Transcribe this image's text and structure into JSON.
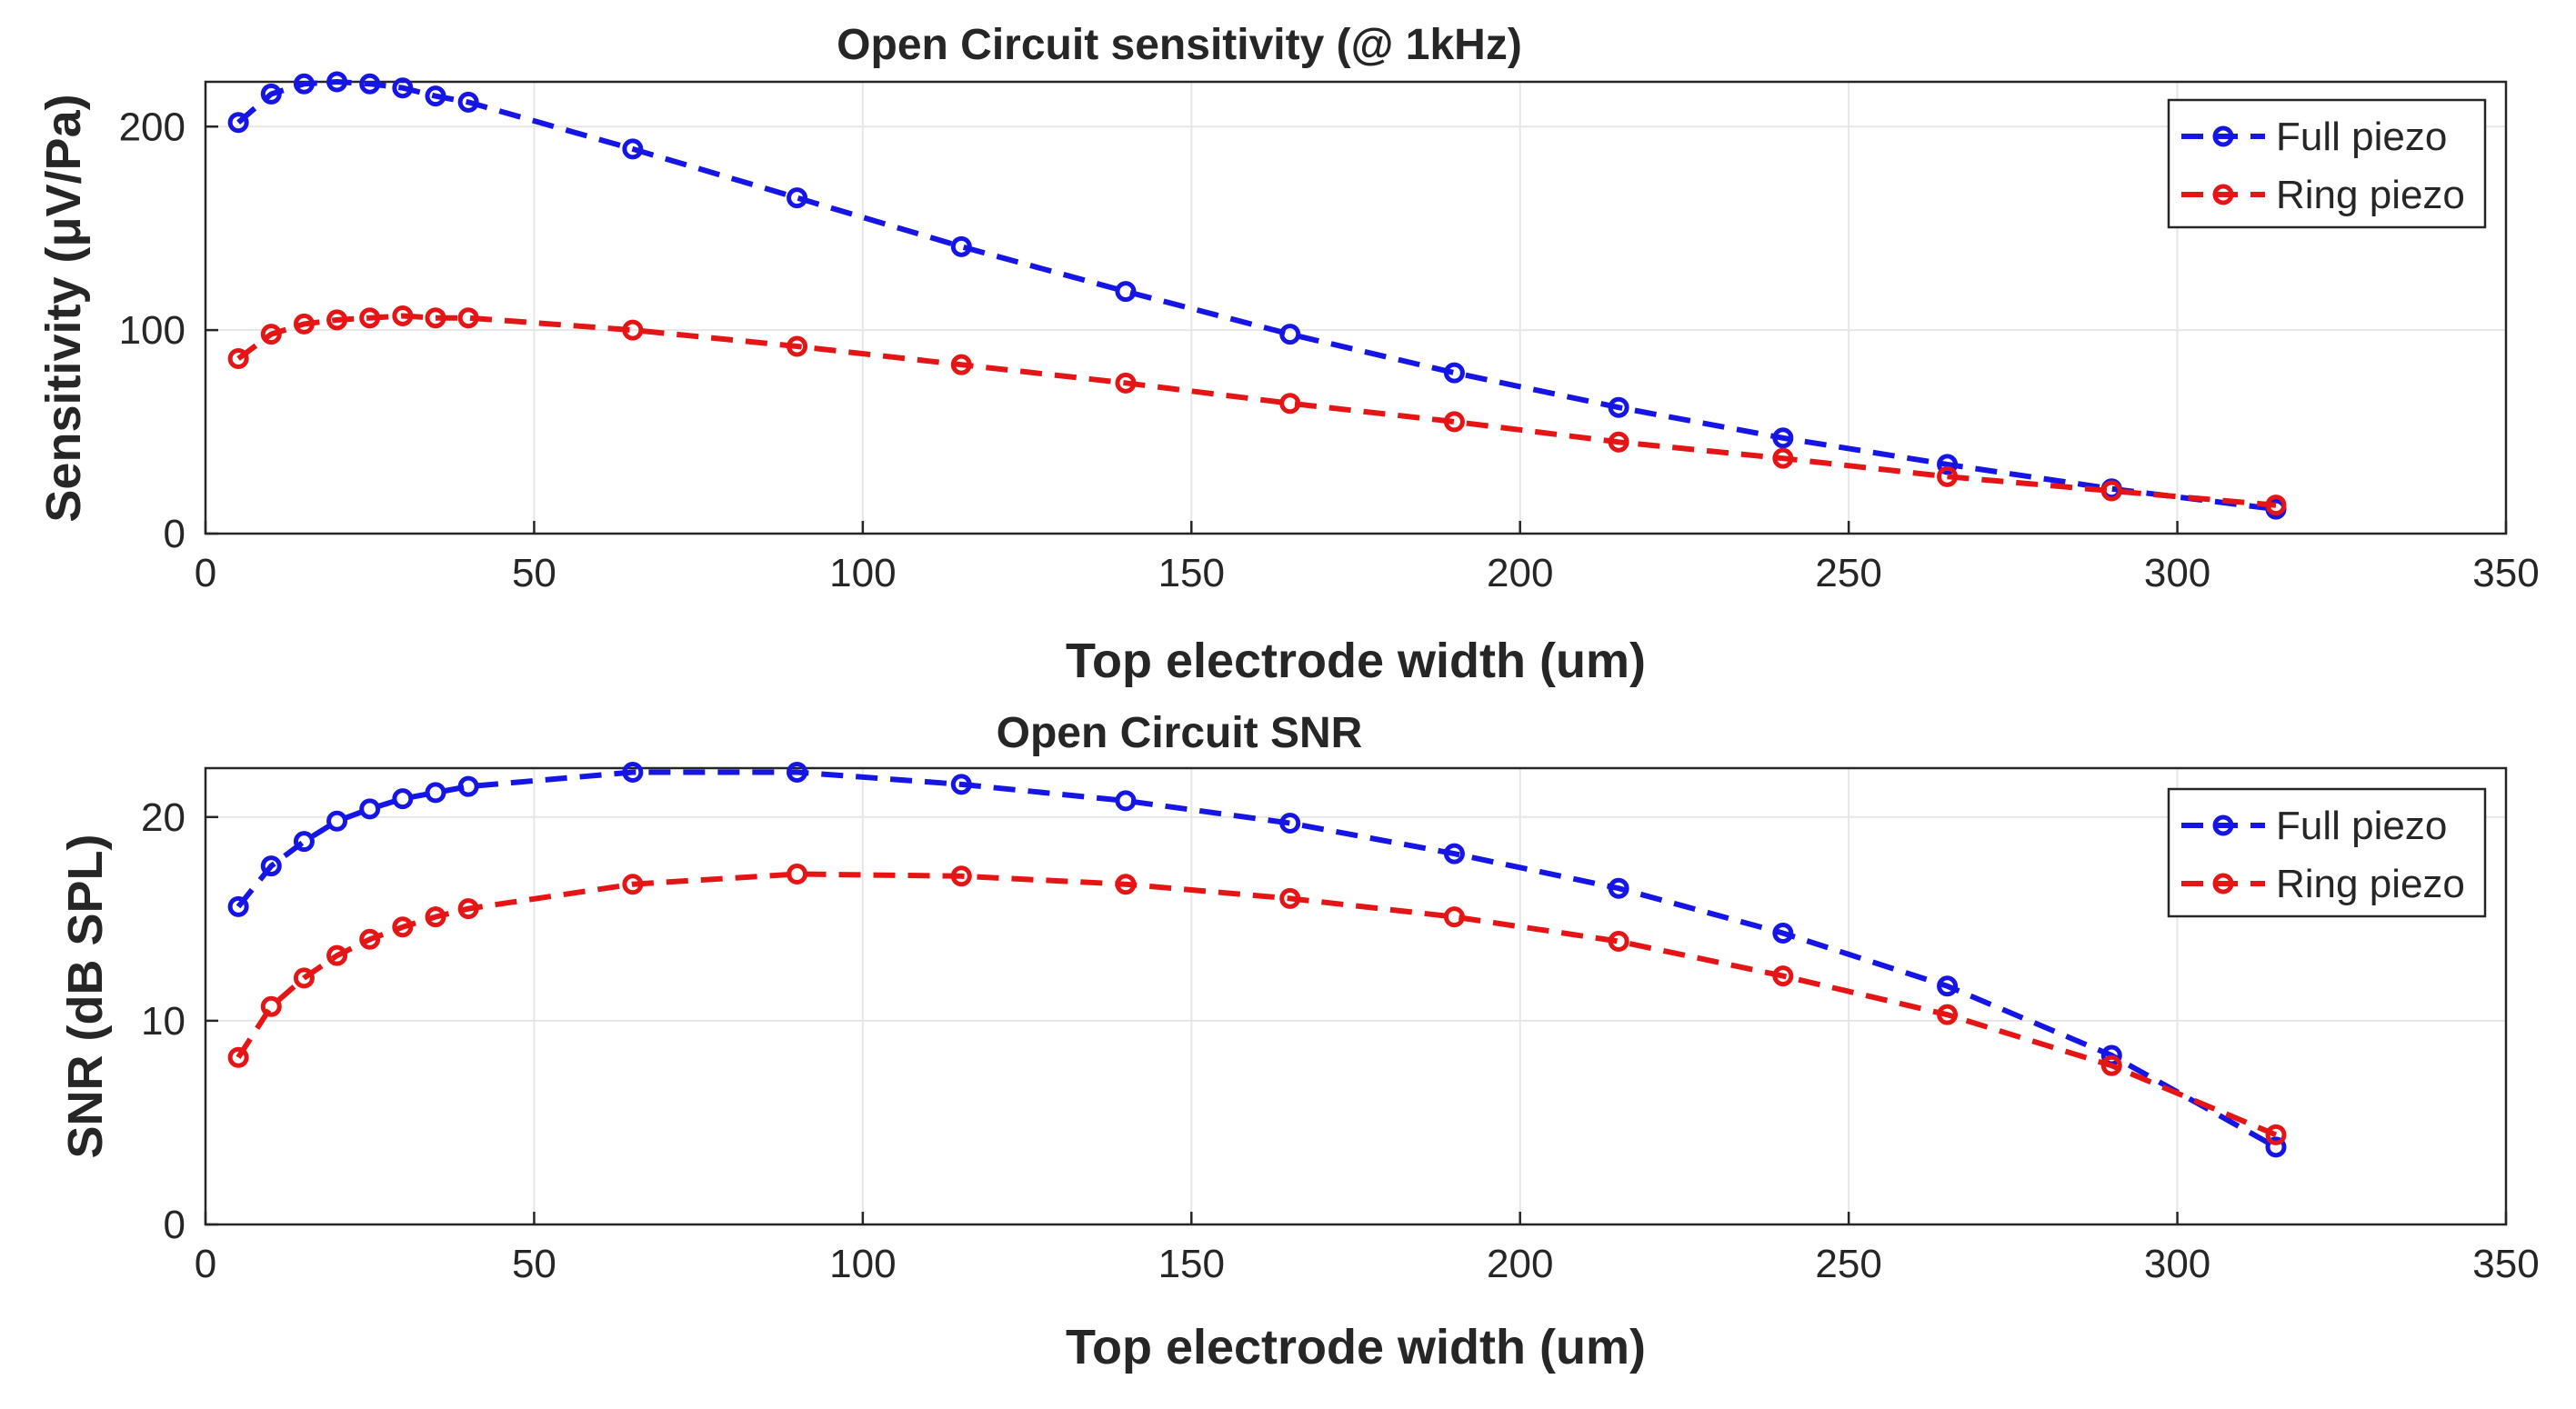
{
  "chart_data": [
    {
      "type": "line",
      "title": "Open Circuit sensitivity (@ 1kHz)",
      "xlabel": "Top electrode width (um)",
      "ylabel": "Sensitivity (μV/Pa)",
      "xlim": [
        0,
        350
      ],
      "ylim": [
        0,
        222
      ],
      "xticks": [
        0,
        50,
        100,
        150,
        200,
        250,
        300,
        350
      ],
      "yticks": [
        0,
        100,
        200
      ],
      "grid": true,
      "legend_position": "top-right",
      "x": [
        5,
        10,
        15,
        20,
        25,
        30,
        35,
        40,
        65,
        90,
        115,
        140,
        165,
        190,
        215,
        240,
        265,
        290,
        315
      ],
      "series": [
        {
          "name": "Full piezo",
          "color": "#1515e6",
          "values": [
            202,
            216,
            221,
            222,
            221,
            219,
            215,
            212,
            189,
            165,
            141,
            119,
            98,
            79,
            62,
            47,
            34,
            22,
            12
          ]
        },
        {
          "name": "Ring piezo",
          "color": "#e61515",
          "values": [
            86,
            98,
            103,
            105,
            106,
            107,
            106,
            106,
            100,
            92,
            83,
            74,
            64,
            55,
            45,
            37,
            28,
            21,
            14
          ]
        }
      ]
    },
    {
      "type": "line",
      "title": "Open Circuit SNR",
      "xlabel": "Top electrode width (um)",
      "ylabel": "SNR (dB SPL)",
      "xlim": [
        0,
        350
      ],
      "ylim": [
        0,
        22.4
      ],
      "xticks": [
        0,
        50,
        100,
        150,
        200,
        250,
        300,
        350
      ],
      "yticks": [
        0,
        10,
        20
      ],
      "grid": true,
      "legend_position": "top-right",
      "x": [
        5,
        10,
        15,
        20,
        25,
        30,
        35,
        40,
        65,
        90,
        115,
        140,
        165,
        190,
        215,
        240,
        265,
        290,
        315
      ],
      "series": [
        {
          "name": "Full piezo",
          "color": "#1515e6",
          "values": [
            15.6,
            17.6,
            18.8,
            19.8,
            20.4,
            20.9,
            21.2,
            21.5,
            22.2,
            22.2,
            21.6,
            20.8,
            19.7,
            18.2,
            16.5,
            14.3,
            11.7,
            8.3,
            3.8
          ]
        },
        {
          "name": "Ring piezo",
          "color": "#e61515",
          "values": [
            8.2,
            10.7,
            12.1,
            13.2,
            14.0,
            14.6,
            15.1,
            15.5,
            16.7,
            17.2,
            17.1,
            16.7,
            16.0,
            15.1,
            13.9,
            12.2,
            10.3,
            7.8,
            4.4
          ]
        }
      ]
    }
  ]
}
